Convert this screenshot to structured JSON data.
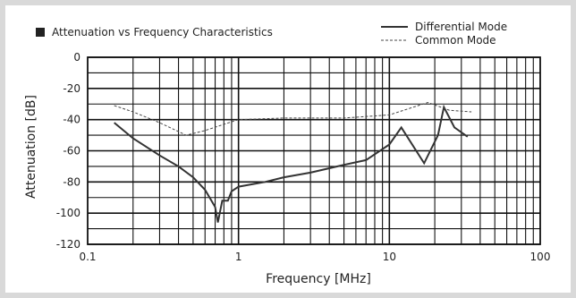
{
  "chart_data": {
    "type": "line",
    "title": "Attenuation vs Frequency Characteristics",
    "xlabel": "Frequency [MHz]",
    "ylabel": "Attenuation [dB]",
    "x_scale": "log",
    "xlim": [
      0.1,
      100
    ],
    "ylim": [
      -120,
      0
    ],
    "x_tick_labels": [
      "0.1",
      "1",
      "10",
      "100"
    ],
    "y_tick_labels": [
      "0",
      "-20",
      "-40",
      "-60",
      "-80",
      "-100",
      "-120"
    ],
    "grid": true,
    "legend_position": "top-right",
    "series": [
      {
        "name": "Differential Mode",
        "style": "solid",
        "color": "#333333",
        "points": [
          [
            0.15,
            -42
          ],
          [
            0.2,
            -52
          ],
          [
            0.3,
            -63
          ],
          [
            0.4,
            -70
          ],
          [
            0.5,
            -77
          ],
          [
            0.6,
            -85
          ],
          [
            0.7,
            -96
          ],
          [
            0.73,
            -106
          ],
          [
            0.78,
            -92
          ],
          [
            0.85,
            -92
          ],
          [
            0.9,
            -86
          ],
          [
            1.0,
            -83
          ],
          [
            1.5,
            -80
          ],
          [
            2.0,
            -77
          ],
          [
            3.0,
            -74
          ],
          [
            5.0,
            -69
          ],
          [
            7.0,
            -66
          ],
          [
            10.0,
            -56
          ],
          [
            12.0,
            -45
          ],
          [
            17.0,
            -68
          ],
          [
            21.0,
            -50
          ],
          [
            23.0,
            -32
          ],
          [
            27.0,
            -45
          ],
          [
            33.0,
            -51
          ]
        ]
      },
      {
        "name": "Common Mode",
        "style": "dashed",
        "color": "#444444",
        "points": [
          [
            0.15,
            -31
          ],
          [
            0.2,
            -35
          ],
          [
            0.3,
            -42
          ],
          [
            0.45,
            -50
          ],
          [
            0.6,
            -47
          ],
          [
            0.8,
            -43
          ],
          [
            1.0,
            -40
          ],
          [
            2.0,
            -39
          ],
          [
            5.0,
            -39
          ],
          [
            10.0,
            -37
          ],
          [
            18.0,
            -29
          ],
          [
            25.0,
            -34
          ],
          [
            35.0,
            -35
          ]
        ]
      }
    ]
  }
}
